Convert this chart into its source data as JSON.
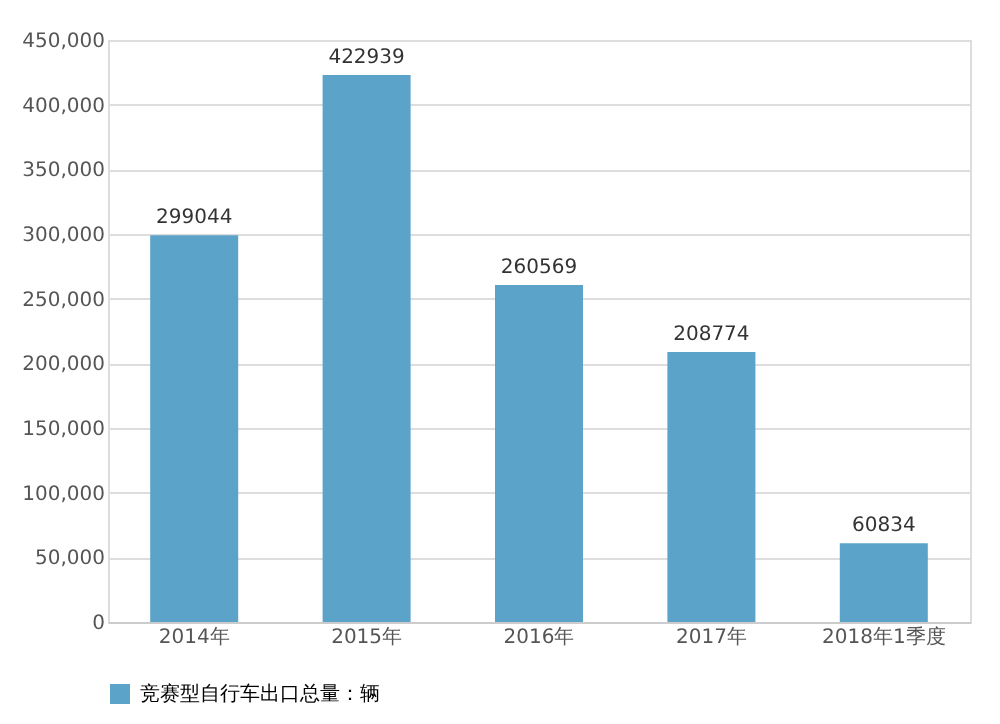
{
  "chart_data": {
    "type": "bar",
    "categories": [
      "2014年",
      "2015年",
      "2016年",
      "2017年",
      "2018年1季度"
    ],
    "series": [
      {
        "name": "竞赛型自行车出口总量：辆",
        "color": "#5ba3c9",
        "values": [
          299044,
          422939,
          260569,
          208774,
          60834
        ]
      }
    ],
    "ylim": [
      0,
      450000
    ],
    "yticks": [
      {
        "value": 0,
        "label": "0"
      },
      {
        "value": 50000,
        "label": "50,000"
      },
      {
        "value": 100000,
        "label": "100,000"
      },
      {
        "value": 150000,
        "label": "150,000"
      },
      {
        "value": 200000,
        "label": "200,000"
      },
      {
        "value": 250000,
        "label": "250,000"
      },
      {
        "value": 300000,
        "label": "300,000"
      },
      {
        "value": 350000,
        "label": "350,000"
      },
      {
        "value": 400000,
        "label": "400,000"
      },
      {
        "value": 450000,
        "label": "450,000"
      }
    ],
    "grid": "y",
    "legend": "bottom",
    "data_labels": true
  }
}
